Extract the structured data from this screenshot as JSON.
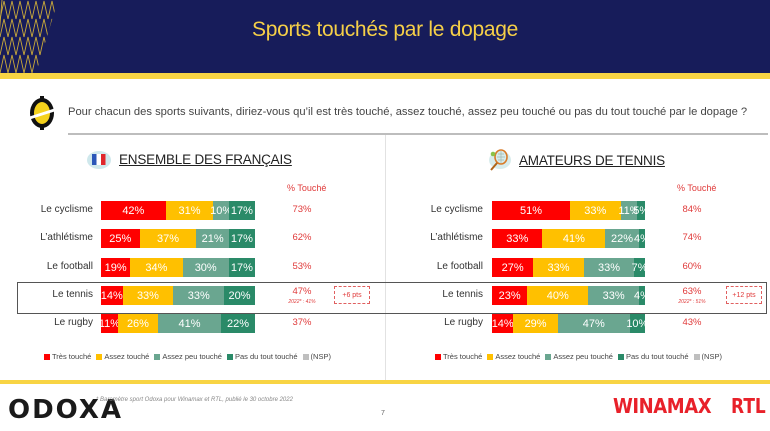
{
  "header": {
    "title": "Sports touchés par le dopage"
  },
  "question": "Pour chacun des sports suivants, diriez-vous qu’il est très touché, assez touché, assez peu touché ou pas du tout touché par le dopage ?",
  "colors": {
    "tres_touche": "#ff0000",
    "assez_touche": "#ffc000",
    "assez_peu_touche": "#6aa690",
    "pas_du_tout": "#2a8a68",
    "nsp": "#bfbfbf",
    "touche_text": "#e03a3a",
    "header_bg": "#171c5a",
    "accent_yellow": "#f8d444"
  },
  "legend": [
    {
      "label": "Très touché",
      "color": "#ff0000"
    },
    {
      "label": "Assez touché",
      "color": "#ffc000"
    },
    {
      "label": "Assez peu touché",
      "color": "#6aa690"
    },
    {
      "label": "Pas du tout touché",
      "color": "#2a8a68"
    },
    {
      "label": "(NSP)",
      "color": "#bfbfbf"
    }
  ],
  "footer": {
    "logo": "ODOXA",
    "footnote": "* Baromètre sport Odoxa pour Winamax et RTL, publié le 30 octobre 2022",
    "page": "7",
    "partner1": "WINAMAX",
    "partner2": "RTL"
  },
  "chart_data": [
    {
      "type": "bar",
      "orientation": "horizontal-stacked-100",
      "title": "ENSEMBLE DES FRANÇAIS",
      "summary_column_label": "% Touché",
      "categories": [
        "Le cyclisme",
        "L’athlétisme",
        "Le football",
        "Le tennis",
        "Le rugby"
      ],
      "series": [
        {
          "name": "Très touché",
          "values": [
            42,
            25,
            19,
            14,
            11
          ]
        },
        {
          "name": "Assez touché",
          "values": [
            31,
            37,
            34,
            33,
            26
          ]
        },
        {
          "name": "Assez peu touché",
          "values": [
            10,
            21,
            30,
            33,
            41
          ]
        },
        {
          "name": "Pas du tout touché",
          "values": [
            17,
            17,
            17,
            20,
            22
          ]
        },
        {
          "name": "(NSP)",
          "values": [
            0,
            0,
            0,
            0,
            0
          ]
        }
      ],
      "pct_touche": [
        "73%",
        "62%",
        "53%",
        "47%",
        "37%"
      ],
      "highlight": {
        "category": "Le tennis",
        "previous": "2022* : 41%",
        "delta": "+6 pts"
      }
    },
    {
      "type": "bar",
      "orientation": "horizontal-stacked-100",
      "title": "AMATEURS DE TENNIS",
      "summary_column_label": "% Touché",
      "categories": [
        "Le cyclisme",
        "L’athlétisme",
        "Le football",
        "Le tennis",
        "Le rugby"
      ],
      "series": [
        {
          "name": "Très touché",
          "values": [
            51,
            33,
            27,
            23,
            14
          ]
        },
        {
          "name": "Assez touché",
          "values": [
            33,
            41,
            33,
            40,
            29
          ]
        },
        {
          "name": "Assez peu touché",
          "values": [
            11,
            22,
            33,
            33,
            47
          ]
        },
        {
          "name": "Pas du tout touché",
          "values": [
            5,
            4,
            7,
            4,
            10
          ]
        },
        {
          "name": "(NSP)",
          "values": [
            0,
            0,
            0,
            0,
            0
          ]
        }
      ],
      "pct_touche": [
        "84%",
        "74%",
        "60%",
        "63%",
        "43%"
      ],
      "highlight": {
        "category": "Le tennis",
        "previous": "2022* : 51%",
        "delta": "+12 pts"
      }
    }
  ]
}
